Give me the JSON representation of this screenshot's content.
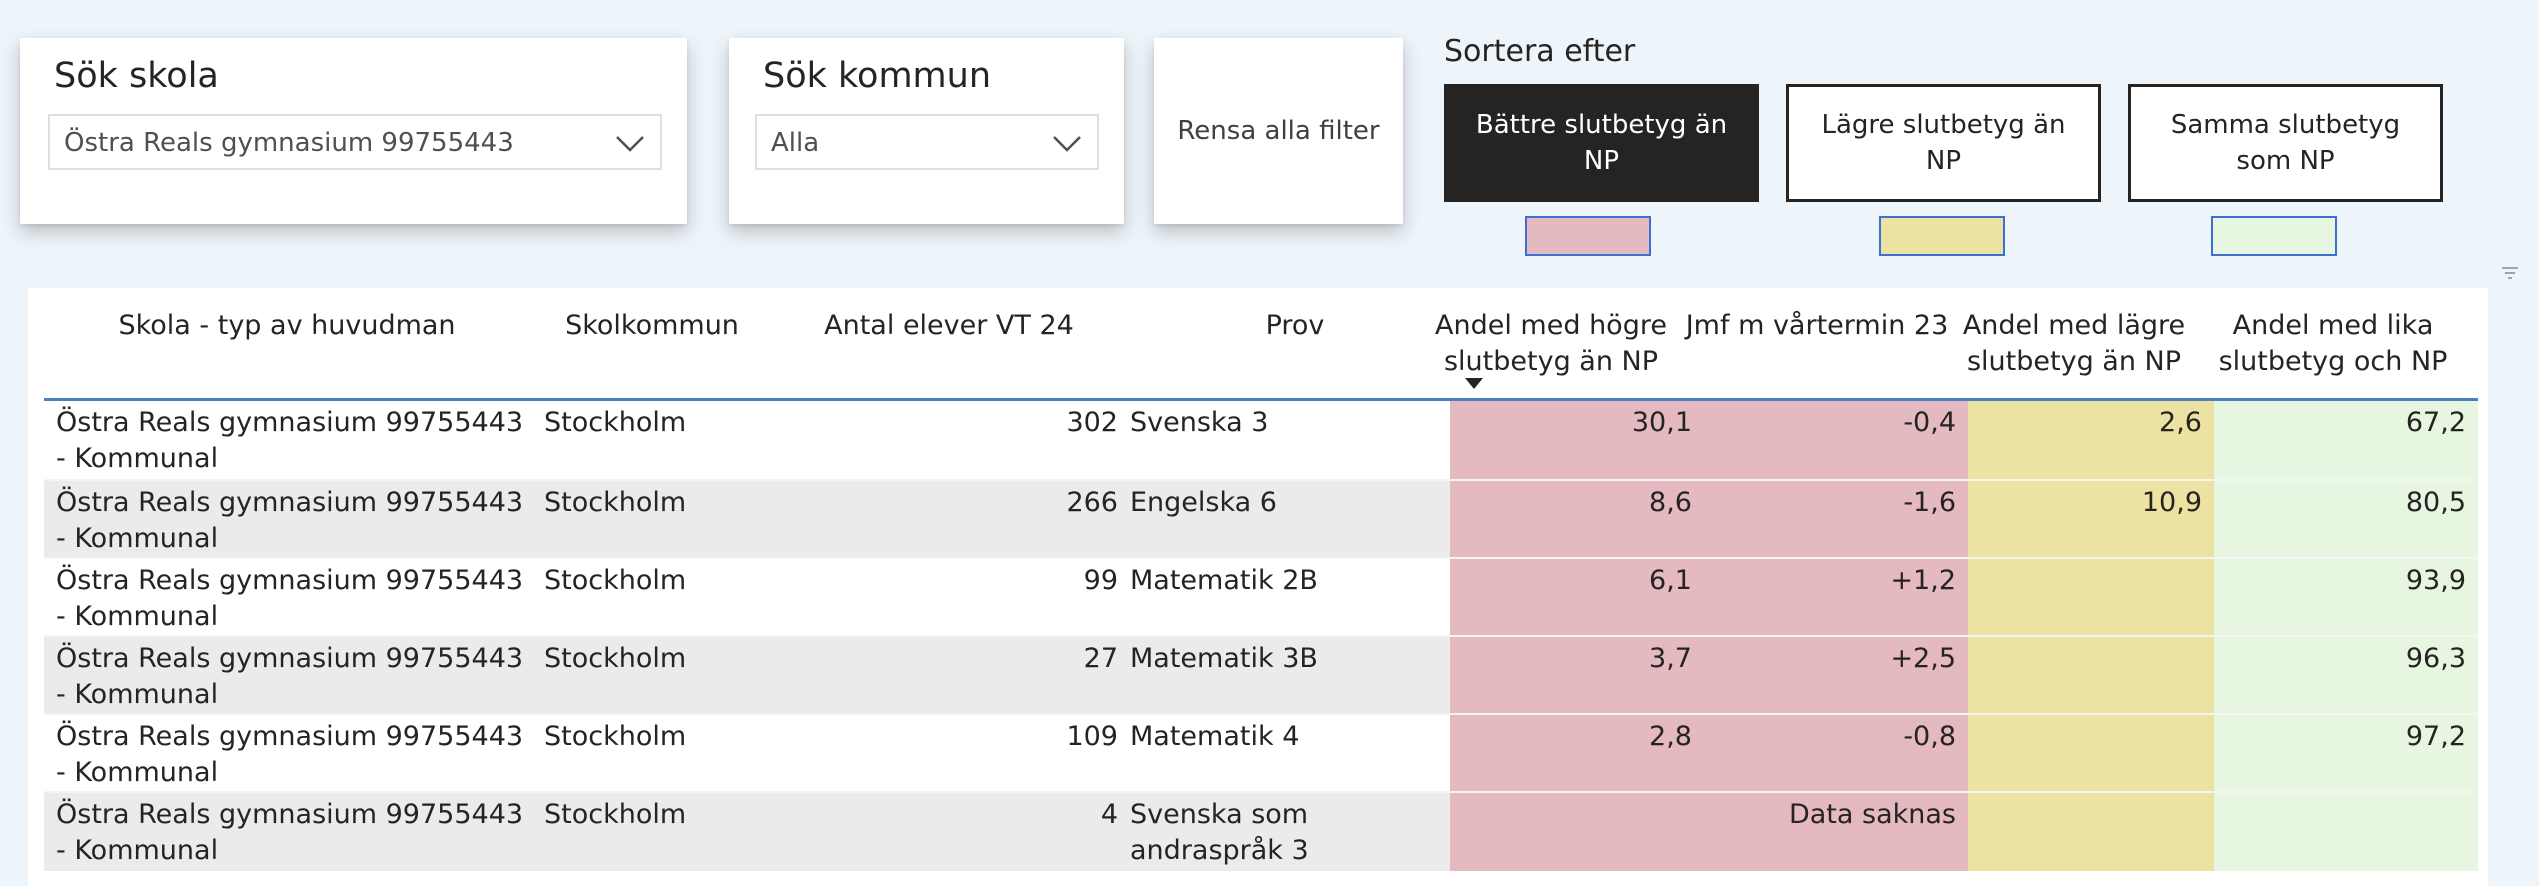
{
  "school_slicer": {
    "title": "Sök skola",
    "value": "Östra Reals gymnasium 99755443"
  },
  "kommun_slicer": {
    "title": "Sök kommun",
    "value": "Alla"
  },
  "clear_filters": {
    "label": "Rensa alla filter"
  },
  "sort": {
    "label": "Sortera efter",
    "buttons": [
      {
        "label": "Bättre slutbetyg än NP",
        "active": true,
        "swatch_color": "#e4b9bf"
      },
      {
        "label": "Lägre slutbetyg än NP",
        "active": false,
        "swatch_color": "#ece3a3"
      },
      {
        "label": "Samma slutbetyg som NP",
        "active": false,
        "swatch_color": "#e7f6e0"
      }
    ]
  },
  "table": {
    "headers": {
      "skola": "Skola - typ av huvudman",
      "kommun": "Skolkommun",
      "antal": "Antal elever VT 24",
      "prov": "Prov",
      "hogre": "Andel med högre slutbetyg än NP",
      "jmf": "Jmf m vårtermin 23",
      "lagre": "Andel med lägre slutbetyg än NP",
      "lika": "Andel med lika slutbetyg och NP"
    },
    "rows": [
      {
        "skola": "Östra Reals gymnasium 99755443 - Kommunal",
        "kommun": "Stockholm",
        "antal": "302",
        "prov": "Svenska 3",
        "hogre": "30,1",
        "jmf": "-0,4",
        "lagre": "2,6",
        "lika": "67,2"
      },
      {
        "skola": "Östra Reals gymnasium 99755443 - Kommunal",
        "kommun": "Stockholm",
        "antal": "266",
        "prov": "Engelska 6",
        "hogre": "8,6",
        "jmf": "-1,6",
        "lagre": "10,9",
        "lika": "80,5"
      },
      {
        "skola": "Östra Reals gymnasium 99755443 - Kommunal",
        "kommun": "Stockholm",
        "antal": "99",
        "prov": "Matematik 2B",
        "hogre": "6,1",
        "jmf": "+1,2",
        "lagre": "",
        "lika": "93,9"
      },
      {
        "skola": "Östra Reals gymnasium 99755443 - Kommunal",
        "kommun": "Stockholm",
        "antal": "27",
        "prov": "Matematik 3B",
        "hogre": "3,7",
        "jmf": "+2,5",
        "lagre": "",
        "lika": "96,3"
      },
      {
        "skola": "Östra Reals gymnasium 99755443 - Kommunal",
        "kommun": "Stockholm",
        "antal": "109",
        "prov": "Matematik 4",
        "hogre": "2,8",
        "jmf": "-0,8",
        "lagre": "",
        "lika": "97,2"
      },
      {
        "skola": "Östra Reals gymnasium 99755443 - Kommunal",
        "kommun": "Stockholm",
        "antal": "4",
        "prov": "Svenska som andraspråk 3",
        "hogre": "",
        "jmf": "Data saknas",
        "lagre": "",
        "lika": ""
      }
    ]
  },
  "colors": {
    "pink": "#e4b9bf",
    "yellow": "#ece3a3",
    "green": "#e7f6e0",
    "header_rule": "#4a7fc4",
    "dark": "#252423"
  }
}
